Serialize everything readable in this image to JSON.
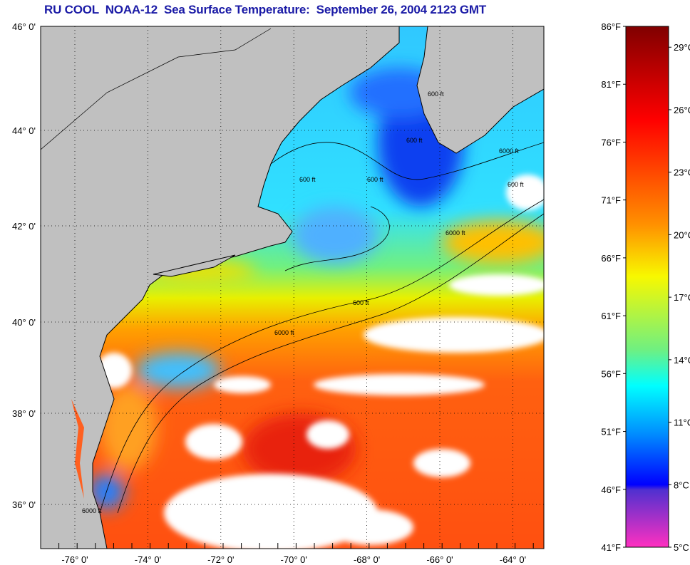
{
  "title": "RU COOL  NOAA-12  Sea Surface Temperature:  September 26, 2004 2123 GMT",
  "map": {
    "lat_labels": [
      {
        "value": 46,
        "label": "46° 0'"
      },
      {
        "value": 44,
        "label": "44° 0'"
      },
      {
        "value": 42,
        "label": "42° 0'"
      },
      {
        "value": 40,
        "label": "40° 0'"
      },
      {
        "value": 38,
        "label": "38° 0'"
      },
      {
        "value": 36,
        "label": "36° 0'"
      }
    ],
    "lon_labels": [
      {
        "value": -76,
        "label": "-76° 0'"
      },
      {
        "value": -74,
        "label": "-74° 0'"
      },
      {
        "value": -72,
        "label": "-72° 0'"
      },
      {
        "value": -70,
        "label": "-70° 0'"
      },
      {
        "value": -68,
        "label": "-68° 0'"
      },
      {
        "value": -66,
        "label": "-66° 0'"
      },
      {
        "value": -64,
        "label": "-64° 0'"
      }
    ],
    "contour_labels": [
      "600 ft",
      "600 ft",
      "600 ft",
      "600 ft",
      "6000 ft",
      "6000 ft",
      "600 ft",
      "6000 ft",
      "600 ft",
      "6000 ft"
    ],
    "colors": {
      "land": "#c0c0c0",
      "cloud": "#ffffff"
    }
  },
  "colorbar": {
    "range_f": [
      41,
      86
    ],
    "f_ticks": [
      "86°F",
      "81°F",
      "76°F",
      "71°F",
      "66°F",
      "61°F",
      "56°F",
      "51°F",
      "46°F",
      "41°F"
    ],
    "f_values": [
      86,
      81,
      76,
      71,
      66,
      61,
      56,
      51,
      46,
      41
    ],
    "c_ticks": [
      "29°C",
      "26°C",
      "23°C",
      "20°C",
      "17°C",
      "14°C",
      "11°C",
      "8°C",
      "5°C"
    ],
    "c_values": [
      29,
      26,
      23,
      20,
      17,
      14,
      11,
      8,
      5
    ],
    "stops": [
      "#800000",
      "#ff0000",
      "#ff8000",
      "#f8f800",
      "#80f060",
      "#00ffff",
      "#0080ff",
      "#0000ff",
      "#6030d0",
      "#ff30c0"
    ]
  }
}
